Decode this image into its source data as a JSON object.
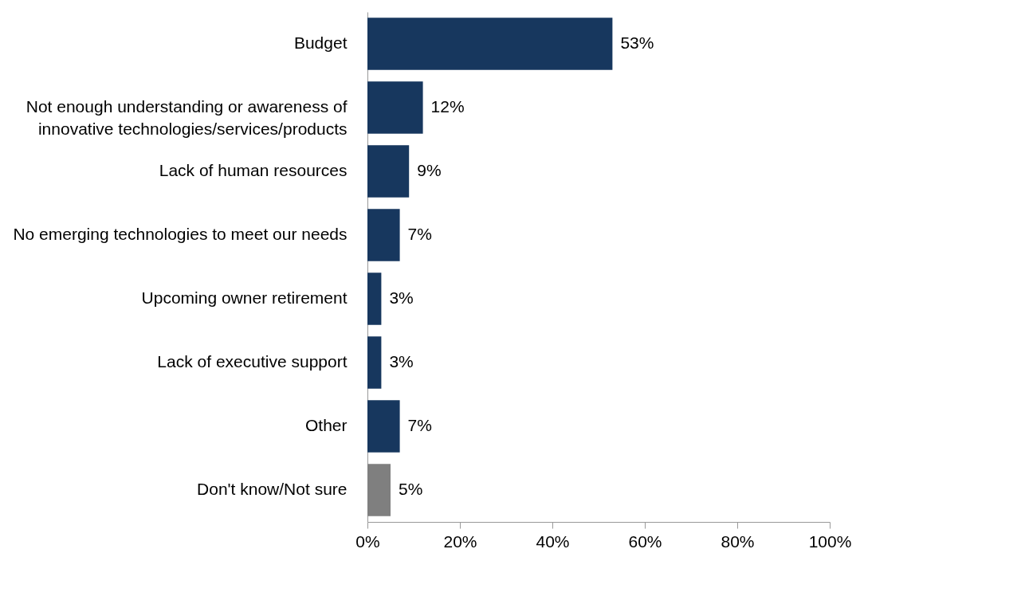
{
  "chart_data": {
    "type": "bar",
    "orientation": "horizontal",
    "categories": [
      "Budget",
      "Not enough understanding or awareness of\ninnovative technologies/services/products",
      "Lack of human resources",
      "No emerging technologies to meet our needs",
      "Upcoming owner retirement",
      "Lack of executive support",
      "Other",
      "Don't know/Not sure"
    ],
    "values": [
      53,
      12,
      9,
      7,
      3,
      3,
      7,
      5
    ],
    "colors": [
      "#17375e",
      "#17375e",
      "#17375e",
      "#17375e",
      "#17375e",
      "#17375e",
      "#17375e",
      "#7f7f7f"
    ],
    "value_labels": [
      "53%",
      "12%",
      "9%",
      "7%",
      "3%",
      "3%",
      "7%",
      "5%"
    ],
    "xlim": [
      0,
      100
    ],
    "xticks": [
      {
        "value": 0,
        "label": "0%"
      },
      {
        "value": 20,
        "label": "20%"
      },
      {
        "value": 40,
        "label": "40%"
      },
      {
        "value": 60,
        "label": "60%"
      },
      {
        "value": 80,
        "label": "80%"
      },
      {
        "value": 100,
        "label": "100%"
      }
    ],
    "grid": false
  }
}
